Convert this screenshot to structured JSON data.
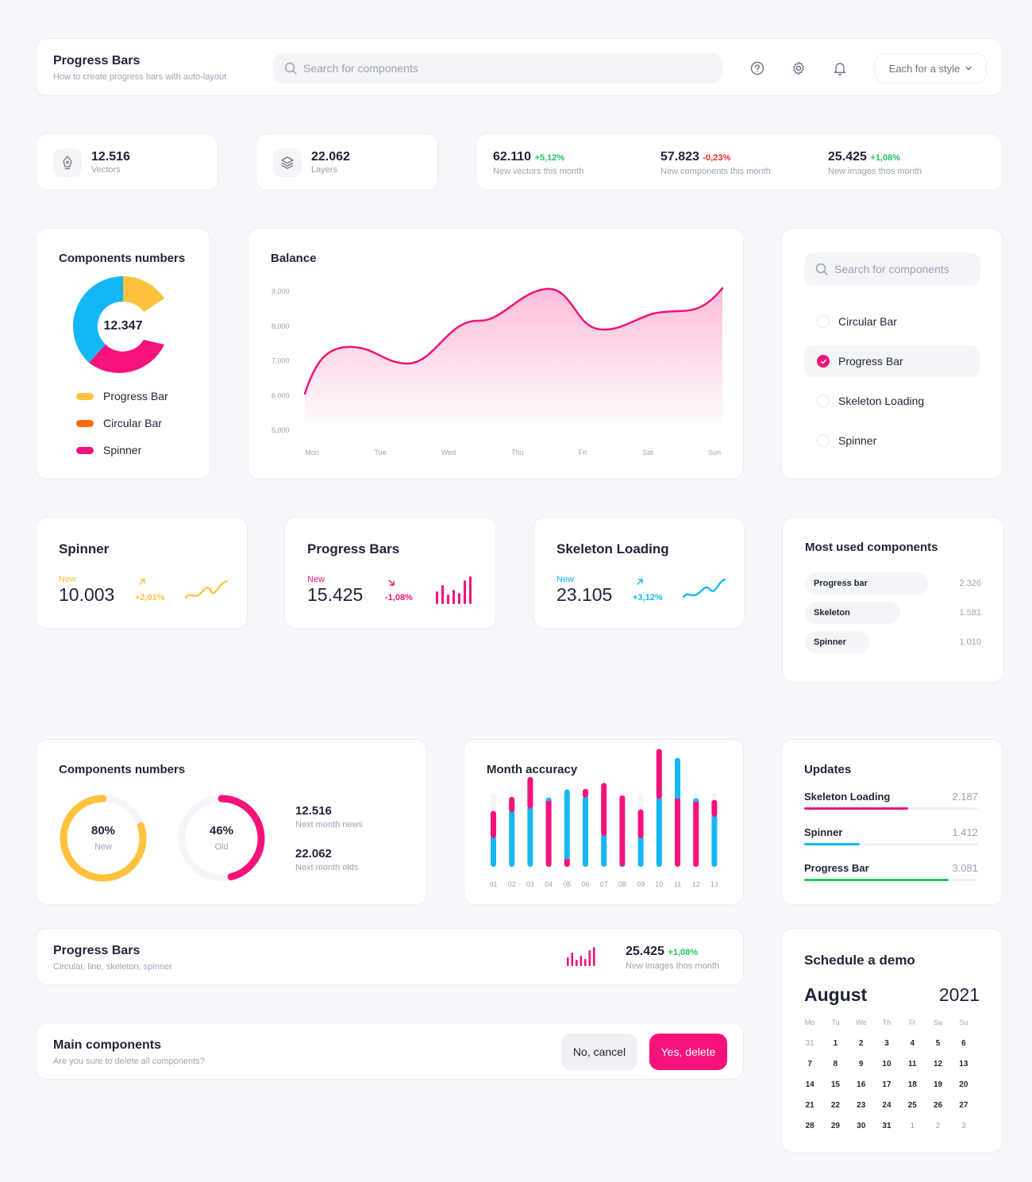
{
  "header": {
    "title": "Progress Bars",
    "subtitle": "How to create progress bars with auto-layout",
    "search_placeholder": "Search for components",
    "style_dropdown": "Each for a style",
    "icons": [
      "help-icon",
      "gear-icon",
      "bell-icon"
    ]
  },
  "stats": [
    {
      "value": "12.516",
      "label": "Vectors",
      "icon": "pen-nib-icon"
    },
    {
      "value": "22.062",
      "label": "Layers",
      "icon": "layers-icon"
    }
  ],
  "month_stats": [
    {
      "value": "62.110",
      "change": "+5,12%",
      "trend": "up",
      "label": "New vectors this month"
    },
    {
      "value": "57.823",
      "change": "-0,23%",
      "trend": "down",
      "label": "New components this month"
    },
    {
      "value": "25.425",
      "change": "+1,08%",
      "trend": "up",
      "label": "New images thos month"
    }
  ],
  "components_numbers": {
    "title": "Components numbers",
    "center_value": "12.347",
    "legend": [
      {
        "label": "Progress Bar",
        "color": "#ffc23d"
      },
      {
        "label": "Circular Bar",
        "color": "#ff6a13"
      },
      {
        "label": "Spinner",
        "color": "#f5127a"
      }
    ],
    "colors": {
      "blue": "#14b7f5",
      "yellow": "#ffc23d",
      "pink": "#f5127a"
    }
  },
  "balance": {
    "title": "Balance",
    "chart_data": {
      "type": "area",
      "x": [
        "Mon",
        "Tue",
        "Wed",
        "Thu",
        "Fri",
        "Sat",
        "Sun"
      ],
      "yticks": [
        "9,000",
        "8,000",
        "7,000",
        "6,000",
        "5,000"
      ],
      "ylim": [
        5000,
        9000
      ],
      "color": "#f5127a"
    }
  },
  "filter": {
    "search_placeholder": "Search for components",
    "options": [
      {
        "label": "Circular Bar",
        "checked": false
      },
      {
        "label": "Progress Bar",
        "checked": true
      },
      {
        "label": "Skeleton Loading",
        "checked": false
      },
      {
        "label": "Spinner",
        "checked": false
      }
    ]
  },
  "kpis": [
    {
      "title": "Spinner",
      "tag": "New",
      "value": "10.003",
      "change": "+2,01%",
      "trend": "up",
      "color": "#ffc23d",
      "spark": "line"
    },
    {
      "title": "Progress Bars",
      "tag": "New",
      "value": "15.425",
      "change": "-1,08%",
      "trend": "down",
      "color": "#f5127a",
      "spark": "bars"
    },
    {
      "title": "Skeleton Loading",
      "tag": "New",
      "value": "23.105",
      "change": "+3,12%",
      "trend": "up",
      "color": "#14b7f5",
      "spark": "line"
    }
  ],
  "most_used": {
    "title": "Most used components",
    "items": [
      {
        "label": "Progress bar",
        "value": "2.326",
        "fraction": 0.75
      },
      {
        "label": "Skeleton",
        "value": "1.581",
        "fraction": 0.58
      },
      {
        "label": "Spinner",
        "value": "1.010",
        "fraction": 0.39
      }
    ]
  },
  "components_numbers_2": {
    "title": "Components numbers",
    "rings": [
      {
        "percent": "80%",
        "label": "New",
        "value": 0.8,
        "color": "#ffc23d"
      },
      {
        "percent": "46%",
        "label": "Old",
        "value": 0.46,
        "color": "#f5127a"
      }
    ],
    "stats": [
      {
        "value": "12.516",
        "label": "Next month news"
      },
      {
        "value": "22.062",
        "label": "Next month olds"
      }
    ]
  },
  "month_accuracy": {
    "title": "Month accuracy",
    "chart_data": {
      "type": "bar",
      "categories": [
        "01",
        "02",
        "03",
        "04",
        "05",
        "06",
        "07",
        "08",
        "09",
        "10",
        "11",
        "12",
        "13"
      ],
      "series": [
        {
          "color": "#14b7f5",
          "values": [
            0.42,
            0.77,
            0.82,
            0.04,
            0.94,
            0.97,
            0.45,
            0.04,
            0.42,
            0.95,
            0.55,
            0.04,
            0.71
          ]
        },
        {
          "color": "#f5127a",
          "values": [
            0.37,
            0.21,
            0.43,
            0.93,
            0.14,
            0.12,
            0.72,
            0.96,
            0.39,
            0.68,
            0.96,
            0.92,
            0.23
          ]
        }
      ]
    }
  },
  "updates": {
    "title": "Updates",
    "items": [
      {
        "label": "Skeleton Loading",
        "value": "2.187",
        "fraction": 0.6,
        "color": "#f5127a"
      },
      {
        "label": "Spinner",
        "value": "1.412",
        "fraction": 0.32,
        "color": "#14b7f5"
      },
      {
        "label": "Progress Bar",
        "value": "3.081",
        "fraction": 0.83,
        "color": "#22c55e"
      }
    ]
  },
  "progress_banner": {
    "title": "Progress Bars",
    "subtitle": "Circular, line, skeleton, spinner",
    "value": "25.425",
    "change": "+1,08%",
    "label": "New images thos month"
  },
  "main_components": {
    "title": "Main components",
    "subtitle": "Are you sure to delete all components?",
    "cancel": "No, cancel",
    "confirm": "Yes, delete"
  },
  "schedule": {
    "title": "Schedule a demo",
    "month": "August",
    "year": "2021",
    "weekdays": [
      "Mo",
      "Tu",
      "We",
      "Th",
      "Fr",
      "Sa",
      "Su"
    ],
    "weeks": [
      [
        "31",
        "1",
        "2",
        "3",
        "4",
        "5",
        "6"
      ],
      [
        "7",
        "8",
        "9",
        "10",
        "11",
        "12",
        "13"
      ],
      [
        "14",
        "15",
        "16",
        "17",
        "18",
        "19",
        "20"
      ],
      [
        "21",
        "22",
        "23",
        "24",
        "25",
        "26",
        "27"
      ],
      [
        "28",
        "29",
        "30",
        "31",
        "1",
        "2",
        "3"
      ]
    ]
  }
}
